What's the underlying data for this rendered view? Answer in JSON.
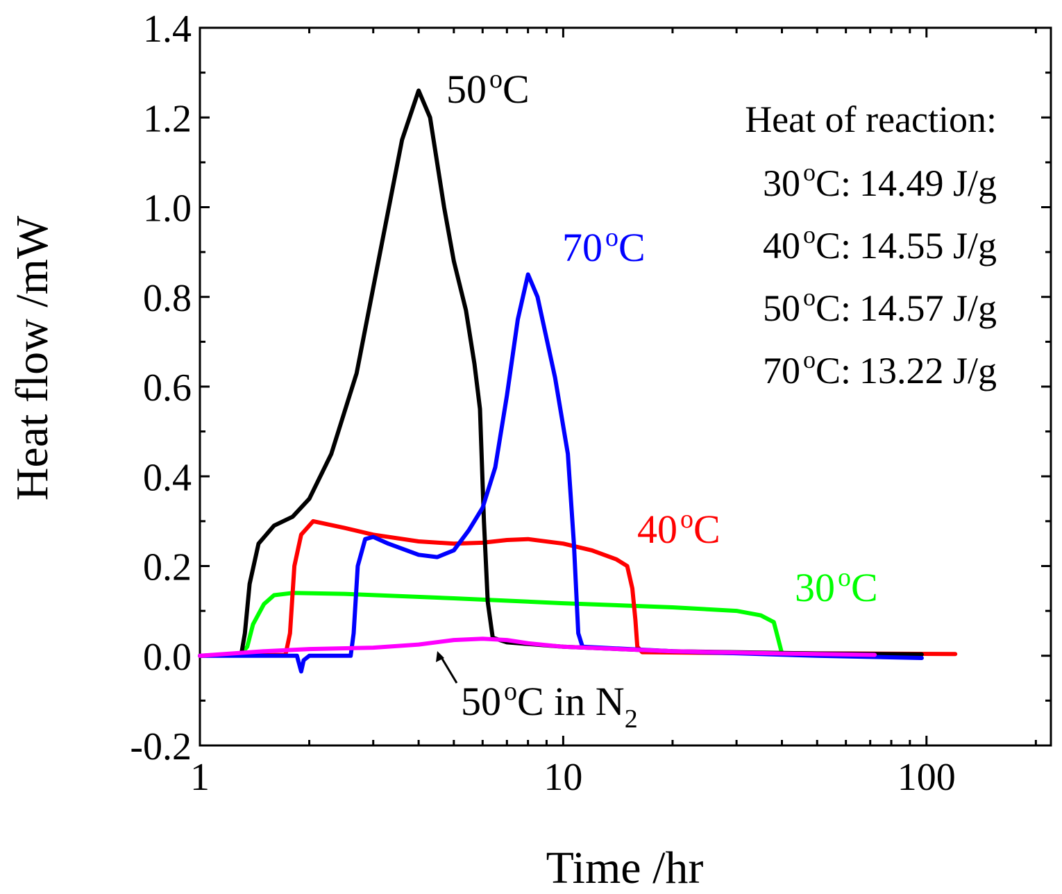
{
  "chart_data": {
    "type": "line",
    "title": "",
    "xlabel": "Time /hr",
    "ylabel": "Heat flow /mW",
    "x_scale": "log",
    "xlim": [
      1,
      220
    ],
    "ylim": [
      -0.2,
      1.4
    ],
    "x_ticks": [
      1,
      10,
      100
    ],
    "x_tick_labels": [
      "1",
      "10",
      "100"
    ],
    "y_ticks": [
      -0.2,
      0.0,
      0.2,
      0.4,
      0.6,
      0.8,
      1.0,
      1.2,
      1.4
    ],
    "y_tick_labels": [
      "-0.2",
      "0.0",
      "0.2",
      "0.4",
      "0.6",
      "0.8",
      "1.0",
      "1.2",
      "1.4"
    ],
    "grid": false,
    "series": [
      {
        "name": "30 °C",
        "color": "#00ff00",
        "label": {
          "value": "30",
          "unit": "C",
          "degree": "o"
        },
        "points": [
          [
            1,
            0
          ],
          [
            1.3,
            0.005
          ],
          [
            1.35,
            0.02
          ],
          [
            1.4,
            0.07
          ],
          [
            1.5,
            0.115
          ],
          [
            1.6,
            0.135
          ],
          [
            1.8,
            0.14
          ],
          [
            2.5,
            0.138
          ],
          [
            5,
            0.128
          ],
          [
            10,
            0.117
          ],
          [
            20,
            0.108
          ],
          [
            30,
            0.1
          ],
          [
            35,
            0.09
          ],
          [
            38,
            0.075
          ],
          [
            39,
            0.04
          ],
          [
            40,
            0.005
          ],
          [
            60,
            0.003
          ],
          [
            80,
            0.002
          ]
        ]
      },
      {
        "name": "40 °C",
        "color": "#ff0000",
        "label": {
          "value": "40",
          "unit": "C",
          "degree": "o"
        },
        "points": [
          [
            1,
            0
          ],
          [
            1.72,
            0.002
          ],
          [
            1.77,
            0.05
          ],
          [
            1.82,
            0.2
          ],
          [
            1.9,
            0.27
          ],
          [
            2.05,
            0.3
          ],
          [
            2.5,
            0.285
          ],
          [
            3,
            0.27
          ],
          [
            4,
            0.255
          ],
          [
            5,
            0.25
          ],
          [
            6,
            0.252
          ],
          [
            7,
            0.258
          ],
          [
            8,
            0.26
          ],
          [
            10,
            0.25
          ],
          [
            12,
            0.235
          ],
          [
            14,
            0.215
          ],
          [
            15,
            0.2
          ],
          [
            15.5,
            0.15
          ],
          [
            15.8,
            0.08
          ],
          [
            16,
            0.02
          ],
          [
            16.5,
            0.008
          ],
          [
            30,
            0.006
          ],
          [
            60,
            0.005
          ],
          [
            120,
            0.004
          ]
        ]
      },
      {
        "name": "50 °C",
        "color": "#000000",
        "label": {
          "value": "50",
          "unit": "C",
          "degree": "o"
        },
        "points": [
          [
            1,
            0
          ],
          [
            1.3,
            0.003
          ],
          [
            1.33,
            0.05
          ],
          [
            1.37,
            0.16
          ],
          [
            1.45,
            0.25
          ],
          [
            1.6,
            0.29
          ],
          [
            1.8,
            0.31
          ],
          [
            2,
            0.35
          ],
          [
            2.3,
            0.45
          ],
          [
            2.7,
            0.63
          ],
          [
            3.1,
            0.88
          ],
          [
            3.6,
            1.15
          ],
          [
            4,
            1.26
          ],
          [
            4.3,
            1.2
          ],
          [
            4.7,
            1.0
          ],
          [
            5,
            0.88
          ],
          [
            5.4,
            0.77
          ],
          [
            5.7,
            0.65
          ],
          [
            5.9,
            0.55
          ],
          [
            6.05,
            0.3
          ],
          [
            6.2,
            0.12
          ],
          [
            6.4,
            0.04
          ],
          [
            7,
            0.03
          ],
          [
            10,
            0.02
          ],
          [
            20,
            0.01
          ],
          [
            50,
            0.005
          ],
          [
            97,
            0.003
          ]
        ]
      },
      {
        "name": "70 °C",
        "color": "#0000ff",
        "label": {
          "value": "70",
          "unit": "C",
          "degree": "o"
        },
        "points": [
          [
            1,
            0
          ],
          [
            1.85,
            0
          ],
          [
            1.9,
            -0.035
          ],
          [
            1.93,
            -0.01
          ],
          [
            2,
            0
          ],
          [
            2.6,
            0
          ],
          [
            2.65,
            0.05
          ],
          [
            2.72,
            0.2
          ],
          [
            2.85,
            0.26
          ],
          [
            3,
            0.265
          ],
          [
            3.3,
            0.25
          ],
          [
            4,
            0.225
          ],
          [
            4.5,
            0.22
          ],
          [
            5,
            0.235
          ],
          [
            5.5,
            0.28
          ],
          [
            6,
            0.33
          ],
          [
            6.5,
            0.42
          ],
          [
            7,
            0.58
          ],
          [
            7.5,
            0.75
          ],
          [
            8,
            0.85
          ],
          [
            8.5,
            0.8
          ],
          [
            9.5,
            0.62
          ],
          [
            10.3,
            0.45
          ],
          [
            10.7,
            0.25
          ],
          [
            11,
            0.05
          ],
          [
            11.3,
            0.02
          ],
          [
            20,
            0.01
          ],
          [
            50,
            0
          ],
          [
            97,
            -0.005
          ]
        ]
      },
      {
        "name": "50 °C in N2",
        "color": "#ff00ff",
        "label": {
          "value": "50",
          "unit": "C in N",
          "degree": "o",
          "subscript": "2"
        },
        "points": [
          [
            1,
            0
          ],
          [
            1.5,
            0.01
          ],
          [
            2,
            0.015
          ],
          [
            3,
            0.018
          ],
          [
            4,
            0.025
          ],
          [
            5,
            0.035
          ],
          [
            6,
            0.038
          ],
          [
            7,
            0.035
          ],
          [
            8,
            0.028
          ],
          [
            10,
            0.02
          ],
          [
            20,
            0.01
          ],
          [
            40,
            0.005
          ],
          [
            72,
            0.002
          ]
        ]
      }
    ],
    "legend": {
      "title": "Heat of reaction:",
      "entries": [
        {
          "temp": "30",
          "degree": "o",
          "unit": "C:",
          "value": "14.49 J/g"
        },
        {
          "temp": "40",
          "degree": "o",
          "unit": "C:",
          "value": "14.55 J/g"
        },
        {
          "temp": "50",
          "degree": "o",
          "unit": "C:",
          "value": "14.57 J/g"
        },
        {
          "temp": "70",
          "degree": "o",
          "unit": "C:",
          "value": "13.22 J/g"
        }
      ],
      "position": "top-right"
    }
  }
}
